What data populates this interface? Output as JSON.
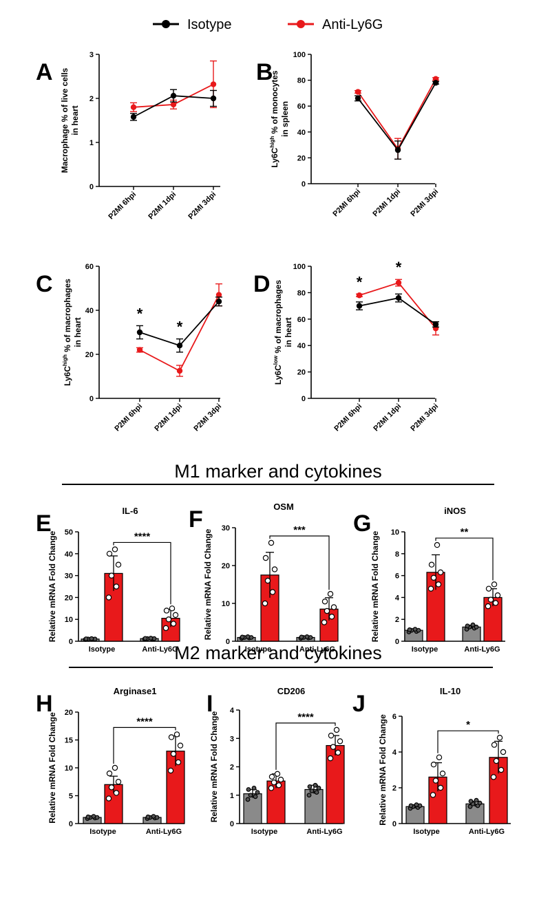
{
  "legend": {
    "isotype": {
      "label": "Isotype",
      "color": "#000000"
    },
    "anti": {
      "label": "Anti-Ly6G",
      "color": "#e8191b"
    }
  },
  "sections": {
    "m1": "M1 marker and cytokines",
    "m2": "M2 marker and cytokines"
  },
  "colors": {
    "isotype_bar": "#8a8a8a",
    "anti_bar": "#e8191b",
    "line_iso": "#000000",
    "line_anti": "#e8191b"
  },
  "chart_data": [
    {
      "id": "A",
      "type": "line",
      "panel_label": "A",
      "ylabel": [
        "Macrophage % of live cells",
        "in heart"
      ],
      "categories": [
        "P2MI 6hpi",
        "P2MI 1dpi",
        "P2MI 3dpi"
      ],
      "ylim": [
        0,
        3
      ],
      "yticks": [
        0,
        1,
        2,
        3
      ],
      "sig": [],
      "series": [
        {
          "name": "Isotype",
          "values": [
            1.58,
            2.06,
            2.0
          ],
          "err": [
            0.08,
            0.14,
            0.18
          ]
        },
        {
          "name": "Anti-Ly6G",
          "values": [
            1.8,
            1.86,
            2.32
          ],
          "err": [
            0.1,
            0.1,
            0.53
          ]
        }
      ]
    },
    {
      "id": "B",
      "type": "line",
      "panel_label": "B",
      "ylabel": [
        "Ly6C",
        "high",
        " % of monocytes",
        "in spleen"
      ],
      "categories": [
        "P2MI 6hpi",
        "P2MI 1dpi",
        "P2MI 3dpi"
      ],
      "ylim": [
        0,
        100
      ],
      "yticks": [
        0,
        20,
        40,
        60,
        80,
        100
      ],
      "sig": [],
      "series": [
        {
          "name": "Isotype",
          "values": [
            66,
            26,
            78
          ],
          "err": [
            2,
            7,
            1
          ]
        },
        {
          "name": "Anti-Ly6G",
          "values": [
            71,
            27,
            81
          ],
          "err": [
            1,
            8,
            1
          ]
        }
      ]
    },
    {
      "id": "C",
      "type": "line",
      "panel_label": "C",
      "ylabel": [
        "Ly6C",
        "high",
        " % of macrophages",
        "in heart"
      ],
      "categories": [
        "P2MI 6hpi",
        "P2MI 1dpi",
        "P2MI 3dpi"
      ],
      "ylim": [
        0,
        60
      ],
      "yticks": [
        0,
        20,
        40,
        60
      ],
      "sig": [
        "*",
        "*",
        ""
      ],
      "series": [
        {
          "name": "Isotype",
          "values": [
            30,
            24,
            44
          ],
          "err": [
            3,
            3,
            2
          ]
        },
        {
          "name": "Anti-Ly6G",
          "values": [
            22,
            12.5,
            47
          ],
          "err": [
            1,
            2.5,
            5
          ]
        }
      ]
    },
    {
      "id": "D",
      "type": "line",
      "panel_label": "D",
      "ylabel": [
        "Ly6C",
        "low",
        " % of macrophages",
        "in heart"
      ],
      "categories": [
        "P2MI 6hpi",
        "P2MI 1dpi",
        "P2MI 3dpi"
      ],
      "ylim": [
        0,
        100
      ],
      "yticks": [
        0,
        20,
        40,
        60,
        80,
        100
      ],
      "sig": [
        "*",
        "*",
        ""
      ],
      "series": [
        {
          "name": "Isotype",
          "values": [
            70,
            76,
            56
          ],
          "err": [
            3,
            3,
            2
          ]
        },
        {
          "name": "Anti-Ly6G",
          "values": [
            78,
            87.5,
            53
          ],
          "err": [
            1,
            2.5,
            5
          ]
        }
      ]
    },
    {
      "id": "E",
      "type": "bar",
      "panel_label": "E",
      "title": "IL-6",
      "ylabel": [
        "Relative mRNA Fold Change"
      ],
      "groups": [
        "Isotype",
        "Anti-Ly6G"
      ],
      "ylim": [
        0,
        50
      ],
      "yticks": [
        0,
        10,
        20,
        30,
        40,
        50
      ],
      "sig": "****",
      "bars": [
        {
          "series": "ctrl",
          "value": 1,
          "err": 0.2,
          "points": [
            0.8,
            0.9,
            1.0,
            1.0,
            1.1,
            1.2
          ]
        },
        {
          "series": "trt",
          "value": 31,
          "err": 8,
          "points": [
            20,
            25,
            30,
            35,
            40,
            42
          ]
        },
        {
          "series": "ctrl",
          "value": 1.2,
          "err": 0.2,
          "points": [
            1.0,
            1.1,
            1.2,
            1.2,
            1.3,
            1.4
          ]
        },
        {
          "series": "trt",
          "value": 10.5,
          "err": 4,
          "points": [
            6,
            8,
            10,
            12,
            14,
            15
          ]
        }
      ]
    },
    {
      "id": "F",
      "type": "bar",
      "panel_label": "F",
      "title": "OSM",
      "ylabel": [
        "Relative mRNA Fold Change"
      ],
      "groups": [
        "Isotype",
        "Anti-Ly6G"
      ],
      "ylim": [
        0,
        30
      ],
      "yticks": [
        0,
        10,
        20,
        30
      ],
      "sig": "***",
      "bars": [
        {
          "series": "ctrl",
          "value": 1,
          "err": 0.2,
          "points": [
            0.8,
            0.9,
            1.0,
            1.0,
            1.1,
            1.2
          ]
        },
        {
          "series": "trt",
          "value": 17.5,
          "err": 6,
          "points": [
            10,
            13,
            16,
            19,
            22,
            26
          ]
        },
        {
          "series": "ctrl",
          "value": 1,
          "err": 0.2,
          "points": [
            0.8,
            0.9,
            1.0,
            1.0,
            1.1,
            1.2
          ]
        },
        {
          "series": "trt",
          "value": 8.5,
          "err": 3,
          "points": [
            5,
            6.5,
            8,
            9,
            10.5,
            12.5
          ]
        }
      ]
    },
    {
      "id": "G",
      "type": "bar",
      "panel_label": "G",
      "title": "iNOS",
      "ylabel": [
        "Relative mRNA Fold Change"
      ],
      "groups": [
        "Isotype",
        "Anti-Ly6G"
      ],
      "ylim": [
        0,
        10
      ],
      "yticks": [
        0,
        2,
        4,
        6,
        8,
        10
      ],
      "sig": "**",
      "bars": [
        {
          "series": "ctrl",
          "value": 1,
          "err": 0.1,
          "points": [
            0.85,
            0.9,
            1.0,
            1.0,
            1.05,
            1.1
          ]
        },
        {
          "series": "trt",
          "value": 6.3,
          "err": 1.6,
          "points": [
            4.8,
            5.2,
            5.8,
            6.3,
            7.0,
            8.8
          ]
        },
        {
          "series": "ctrl",
          "value": 1.3,
          "err": 0.15,
          "points": [
            1.1,
            1.2,
            1.3,
            1.3,
            1.4,
            1.5
          ]
        },
        {
          "series": "trt",
          "value": 4.0,
          "err": 0.8,
          "points": [
            3.2,
            3.5,
            3.8,
            4.2,
            4.8,
            5.2
          ]
        }
      ]
    },
    {
      "id": "H",
      "type": "bar",
      "panel_label": "H",
      "title": "Arginase1",
      "ylabel": [
        "Relative mRNA Fold Change"
      ],
      "groups": [
        "Isotype",
        "Anti-Ly6G"
      ],
      "ylim": [
        0,
        20
      ],
      "yticks": [
        0,
        5,
        10,
        15,
        20
      ],
      "sig": "****",
      "bars": [
        {
          "series": "ctrl",
          "value": 1.1,
          "err": 0.2,
          "points": [
            0.9,
            1.0,
            1.1,
            1.1,
            1.2,
            1.3
          ]
        },
        {
          "series": "trt",
          "value": 7,
          "err": 1.5,
          "points": [
            4.5,
            5.5,
            6.5,
            7.5,
            9,
            10
          ]
        },
        {
          "series": "ctrl",
          "value": 1.1,
          "err": 0.2,
          "points": [
            0.9,
            1.0,
            1.1,
            1.1,
            1.2,
            1.3
          ]
        },
        {
          "series": "trt",
          "value": 13,
          "err": 2.7,
          "points": [
            9.5,
            11,
            12.5,
            14,
            15.5,
            16
          ]
        }
      ]
    },
    {
      "id": "I",
      "type": "bar",
      "panel_label": "I",
      "title": "CD206",
      "ylabel": [
        "Relative mRNA Fold Change"
      ],
      "groups": [
        "Isotype",
        "Anti-Ly6G"
      ],
      "ylim": [
        0,
        4
      ],
      "yticks": [
        0,
        1,
        2,
        3,
        4
      ],
      "sig": "****",
      "bars": [
        {
          "series": "ctrl",
          "value": 1.05,
          "err": 0.15,
          "points": [
            0.85,
            0.95,
            1.0,
            1.1,
            1.2,
            1.25
          ]
        },
        {
          "series": "trt",
          "value": 1.5,
          "err": 0.25,
          "points": [
            1.25,
            1.35,
            1.45,
            1.55,
            1.65,
            1.75
          ]
        },
        {
          "series": "ctrl",
          "value": 1.2,
          "err": 0.15,
          "points": [
            1.0,
            1.1,
            1.15,
            1.25,
            1.3,
            1.35
          ]
        },
        {
          "series": "trt",
          "value": 2.75,
          "err": 0.35,
          "points": [
            2.3,
            2.5,
            2.7,
            2.9,
            3.1,
            3.3
          ]
        }
      ]
    },
    {
      "id": "J",
      "type": "bar",
      "panel_label": "J",
      "title": "IL-10",
      "ylabel": [
        "Relative mRNA Fold Change"
      ],
      "groups": [
        "Isotype",
        "Anti-Ly6G"
      ],
      "ylim": [
        0,
        6
      ],
      "yticks": [
        0,
        2,
        4,
        6
      ],
      "sig": "*",
      "bars": [
        {
          "series": "ctrl",
          "value": 0.95,
          "err": 0.1,
          "points": [
            0.85,
            0.9,
            0.95,
            1.0,
            1.0,
            1.05
          ]
        },
        {
          "series": "trt",
          "value": 2.6,
          "err": 0.8,
          "points": [
            1.6,
            2.0,
            2.4,
            2.8,
            3.3,
            3.7
          ]
        },
        {
          "series": "ctrl",
          "value": 1.1,
          "err": 0.15,
          "points": [
            0.95,
            1.0,
            1.1,
            1.15,
            1.25,
            1.3
          ]
        },
        {
          "series": "trt",
          "value": 3.7,
          "err": 0.9,
          "points": [
            2.6,
            3.0,
            3.5,
            4.0,
            4.4,
            4.8
          ]
        }
      ]
    }
  ]
}
